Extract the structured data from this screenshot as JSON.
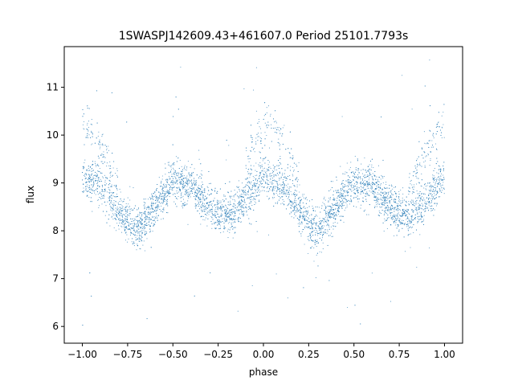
{
  "chart_data": {
    "type": "scatter",
    "title": "1SWASPJ142609.43+461607.0 Period 25101.7793s",
    "xlabel": "phase",
    "ylabel": "flux",
    "xlim": [
      -1.1,
      1.1
    ],
    "ylim": [
      5.65,
      11.85
    ],
    "xticks": [
      -1.0,
      -0.75,
      -0.5,
      -0.25,
      0.0,
      0.25,
      0.5,
      0.75,
      1.0
    ],
    "xtick_labels": [
      "−1.00",
      "−0.75",
      "−0.50",
      "−0.25",
      "0.00",
      "0.25",
      "0.50",
      "0.75",
      "1.00"
    ],
    "yticks": [
      6,
      7,
      8,
      9,
      10,
      11
    ],
    "ytick_labels": [
      "6",
      "7",
      "8",
      "9",
      "10",
      "11"
    ],
    "grid": false,
    "point_color": "#1f77b4",
    "series": [
      {
        "name": "",
        "description": "phase-folded light curve repeated over two cycles (phase -1 to 1); dense band plus a fainter upper branch near phase 0/±1",
        "phase": [
          -1.0,
          -0.9,
          -0.8,
          -0.7,
          -0.6,
          -0.5,
          -0.4,
          -0.3,
          -0.2,
          -0.1,
          0.0,
          0.1,
          0.2,
          0.3,
          0.4,
          0.5,
          0.6,
          0.7,
          0.8,
          0.9,
          1.0
        ],
        "flux": [
          9.15,
          8.95,
          8.4,
          8.0,
          8.5,
          9.0,
          8.95,
          8.5,
          8.3,
          8.65,
          9.15,
          8.95,
          8.4,
          8.0,
          8.5,
          9.0,
          8.95,
          8.5,
          8.3,
          8.65,
          9.15
        ],
        "upper_branch_phase": [
          -1.0,
          -0.95,
          -0.9,
          -0.85,
          -0.8,
          -0.1,
          -0.05,
          0.0,
          0.05,
          0.1,
          0.15,
          0.2,
          0.8,
          0.85,
          0.9,
          0.95,
          1.0
        ],
        "upper_branch_flux": [
          10.3,
          10.1,
          9.8,
          9.4,
          8.9,
          9.3,
          9.9,
          10.2,
          10.25,
          10.0,
          9.5,
          9.0,
          8.9,
          9.3,
          9.7,
          10.0,
          10.3
        ],
        "approx_points": 20000
      }
    ]
  }
}
